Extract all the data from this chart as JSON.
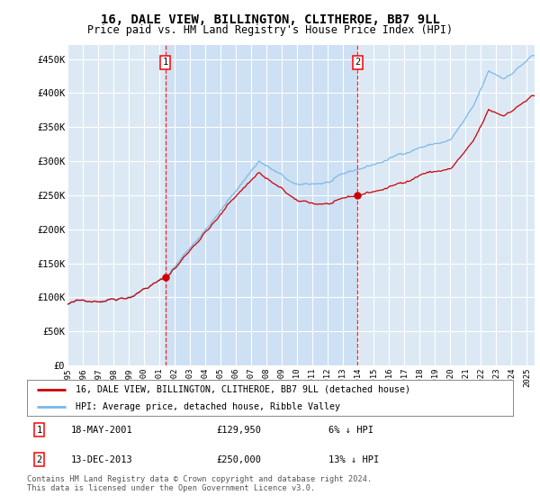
{
  "title": "16, DALE VIEW, BILLINGTON, CLITHEROE, BB7 9LL",
  "subtitle": "Price paid vs. HM Land Registry's House Price Index (HPI)",
  "ylabel_ticks": [
    "£0",
    "£50K",
    "£100K",
    "£150K",
    "£200K",
    "£250K",
    "£300K",
    "£350K",
    "£400K",
    "£450K"
  ],
  "ytick_values": [
    0,
    50000,
    100000,
    150000,
    200000,
    250000,
    300000,
    350000,
    400000,
    450000
  ],
  "ylim": [
    0,
    470000
  ],
  "xlim_start": 1995.0,
  "xlim_end": 2025.5,
  "background_color": "#dce9f5",
  "plot_bg_color": "#dce9f5",
  "hpi_color": "#7bb8e8",
  "price_color": "#cc0000",
  "shade_color": "#c8ddf2",
  "sale1_date": 2001.38,
  "sale1_price": 129950,
  "sale2_date": 2013.95,
  "sale2_price": 250000,
  "legend_label1": "16, DALE VIEW, BILLINGTON, CLITHEROE, BB7 9LL (detached house)",
  "legend_label2": "HPI: Average price, detached house, Ribble Valley",
  "annotation1_text": "18-MAY-2001",
  "annotation1_price": "£129,950",
  "annotation1_pct": "6% ↓ HPI",
  "annotation2_text": "13-DEC-2013",
  "annotation2_price": "£250,000",
  "annotation2_pct": "13% ↓ HPI",
  "footer": "Contains HM Land Registry data © Crown copyright and database right 2024.\nThis data is licensed under the Open Government Licence v3.0.",
  "xtick_years": [
    1995,
    1996,
    1997,
    1998,
    1999,
    2000,
    2001,
    2002,
    2003,
    2004,
    2005,
    2006,
    2007,
    2008,
    2009,
    2010,
    2011,
    2012,
    2013,
    2014,
    2015,
    2016,
    2017,
    2018,
    2019,
    2020,
    2021,
    2022,
    2023,
    2024,
    2025
  ]
}
